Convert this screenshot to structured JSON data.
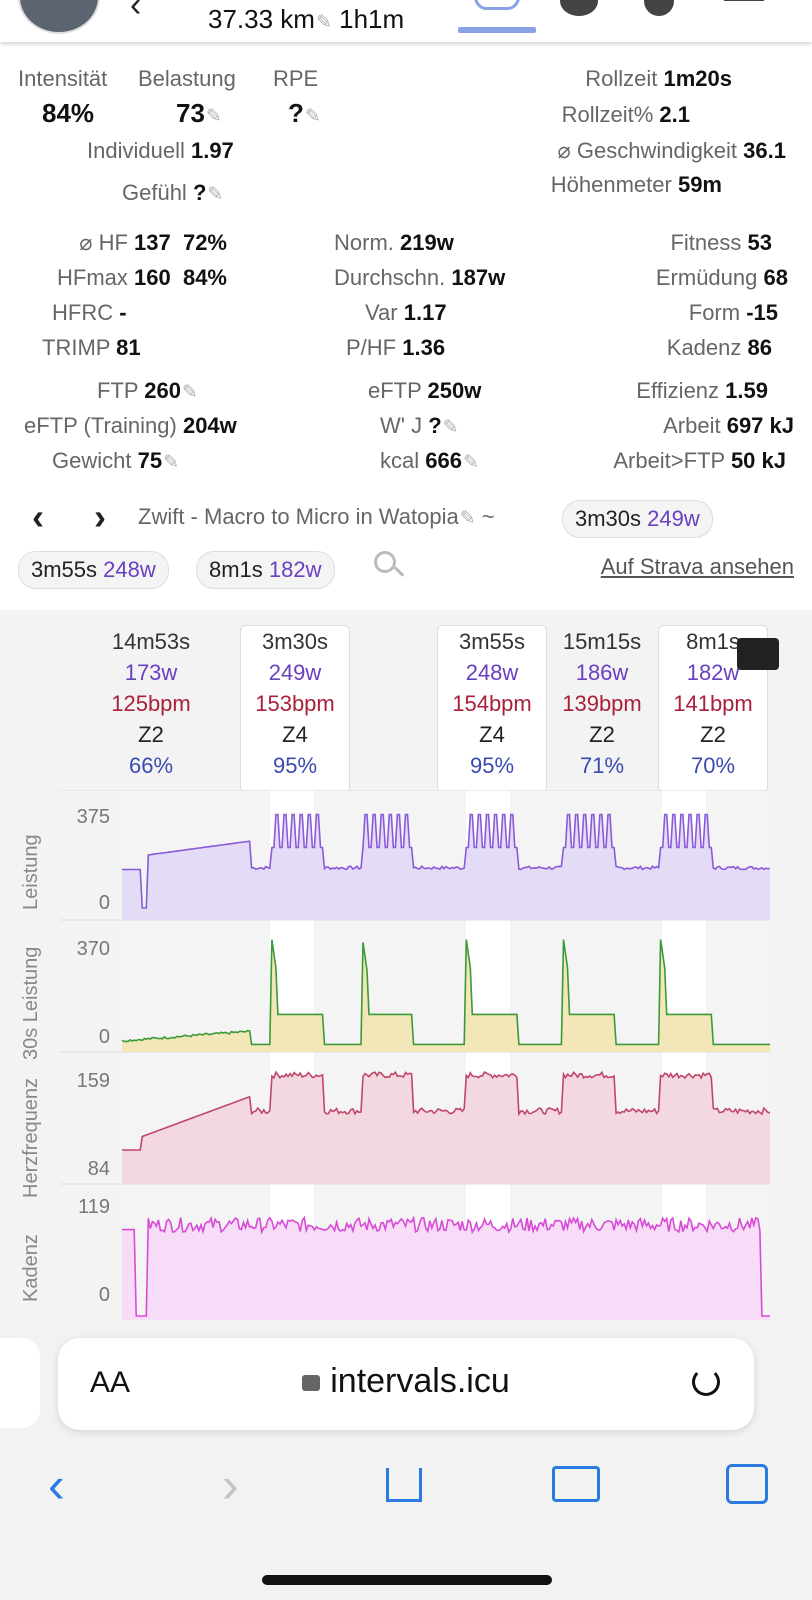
{
  "header": {
    "distance": "37.33 km",
    "duration": "1h1m"
  },
  "stats": {
    "intensity": {
      "label": "Intensität",
      "value": "84%"
    },
    "load": {
      "label": "Belastung",
      "value": "73"
    },
    "rpe": {
      "label": "RPE",
      "value": "?"
    },
    "individual": {
      "label": "Individuell",
      "value": "1.97"
    },
    "feel": {
      "label": "Gefühl",
      "value": "?"
    },
    "coast_time": {
      "label": "Rollzeit",
      "value": "1m20s"
    },
    "coast_pct": {
      "label": "Rollzeit%",
      "value": "2.1"
    },
    "avg_speed": {
      "label": "⌀ Geschwindigkeit",
      "value": "36.1"
    },
    "elevation": {
      "label": "Höhenmeter",
      "value": "59m"
    },
    "avg_hr": {
      "label": "⌀ HF",
      "value": "137  72%"
    },
    "max_hr": {
      "label": "HFmax",
      "value": "160  84%"
    },
    "hrrc": {
      "label": "HFRC",
      "value": "-"
    },
    "trimp": {
      "label": "TRIMP",
      "value": "81"
    },
    "norm_power": {
      "label": "Norm.",
      "value": "219w"
    },
    "avg_power": {
      "label": "Durchschn.",
      "value": "187w"
    },
    "variability": {
      "label": "Var",
      "value": "1.17"
    },
    "power_hr": {
      "label": "P/HF",
      "value": "1.36"
    },
    "fitness": {
      "label": "Fitness",
      "value": "53"
    },
    "fatigue": {
      "label": "Ermüdung",
      "value": "68"
    },
    "form": {
      "label": "Form",
      "value": "-15"
    },
    "cadence": {
      "label": "Kadenz",
      "value": "86"
    },
    "ftp": {
      "label": "FTP",
      "value": "260"
    },
    "eftp_training": {
      "label": "eFTP (Training)",
      "value": "204w"
    },
    "weight": {
      "label": "Gewicht",
      "value": "75"
    },
    "eftp": {
      "label": "eFTP",
      "value": "250w"
    },
    "wprime": {
      "label": "W' J",
      "value": "?"
    },
    "kcal": {
      "label": "kcal",
      "value": "666"
    },
    "efficiency": {
      "label": "Effizienz",
      "value": "1.59"
    },
    "work": {
      "label": "Arbeit",
      "value": "697 kJ"
    },
    "work_above_ftp": {
      "label": "Arbeit>FTP",
      "value": "50 kJ"
    }
  },
  "activity": {
    "name": "Zwift - Macro to Micro in Watopia",
    "separator": "~",
    "chips": [
      {
        "time": "3m30s",
        "watts": "249w"
      },
      {
        "time": "3m55s",
        "watts": "248w"
      },
      {
        "time": "8m1s",
        "watts": "182w"
      }
    ],
    "strava_link": "Auf Strava ansehen"
  },
  "intervals": [
    {
      "time": "14m53s",
      "watts": "173w",
      "bpm": "125bpm",
      "zone": "Z2",
      "pct": "66%"
    },
    {
      "time": "3m30s",
      "watts": "249w",
      "bpm": "153bpm",
      "zone": "Z4",
      "pct": "95%"
    },
    {
      "time": "3m55s",
      "watts": "248w",
      "bpm": "154bpm",
      "zone": "Z4",
      "pct": "95%"
    },
    {
      "time": "15m15s",
      "watts": "186w",
      "bpm": "139bpm",
      "zone": "Z2",
      "pct": "71%"
    },
    {
      "time": "8m1s",
      "watts": "182w",
      "bpm": "141bpm",
      "zone": "Z2",
      "pct": "70%"
    }
  ],
  "chart_data": {
    "type": "line",
    "x_unit": "time",
    "panels": [
      {
        "name": "Leistung",
        "ylim": [
          0,
          375
        ],
        "ticks": [
          "375",
          "0"
        ],
        "color": "#8a5ad8"
      },
      {
        "name": "30s Leistung",
        "ylim": [
          0,
          370
        ],
        "ticks": [
          "370",
          "0"
        ],
        "color": "#3a9a3a"
      },
      {
        "name": "Herzfrequenz",
        "ylim": [
          84,
          159
        ],
        "ticks": [
          "159",
          "84"
        ],
        "color": "#c0466a"
      },
      {
        "name": "Kadenz",
        "ylim": [
          0,
          119
        ],
        "ticks": [
          "119",
          "0"
        ],
        "color": "#d84ad8"
      }
    ]
  },
  "browser": {
    "aa": "AA",
    "url": "intervals.icu"
  }
}
